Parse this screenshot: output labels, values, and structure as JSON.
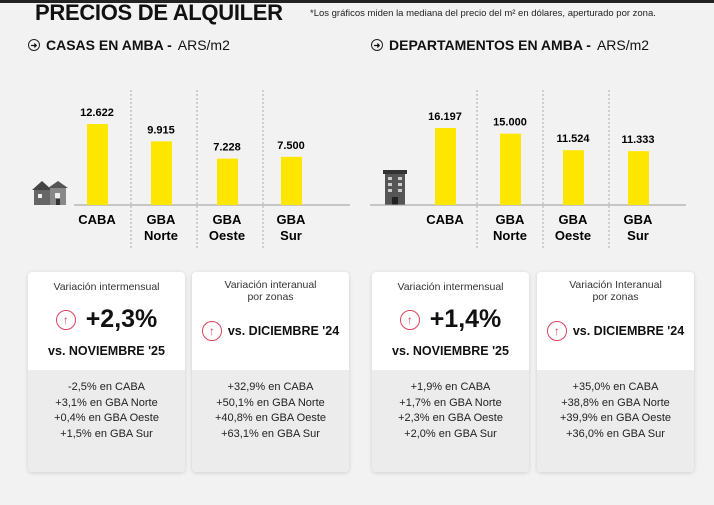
{
  "header": {
    "title": "PRECIOS DE ALQUILER",
    "note": "*Los gráficos miden la mediana del precio del m² en dólares, aperturado por zona."
  },
  "sections": [
    {
      "title": "CASAS EN AMBA -",
      "unit": "ARS/m2",
      "icon": "house-icon"
    },
    {
      "title": "DEPARTAMENTOS EN AMBA -",
      "unit": "ARS/m2",
      "icon": "building-icon"
    }
  ],
  "chart_data": [
    {
      "type": "bar",
      "title": "CASAS EN AMBA - ARS/m2",
      "categories": [
        "CABA",
        "GBA Norte",
        "GBA Oeste",
        "GBA Sur"
      ],
      "values": [
        12622,
        9915,
        7228,
        7500
      ],
      "labels": [
        "12.622",
        "9.915",
        "7.228",
        "7.500"
      ],
      "bar_color": "#ffe600"
    },
    {
      "type": "bar",
      "title": "DEPARTAMENTOS EN AMBA - ARS/m2",
      "categories": [
        "CABA",
        "GBA Norte",
        "GBA Oeste",
        "GBA Sur"
      ],
      "values": [
        16197,
        15000,
        11524,
        11333
      ],
      "labels": [
        "16.197",
        "15.000",
        "11.524",
        "11.333"
      ],
      "bar_color": "#ffe600"
    }
  ],
  "cards": [
    {
      "label": "Variación intermensual",
      "value": "+2,3%",
      "vs": "vs. NOVIEMBRE '25",
      "lines": [
        "-2,5% en CABA",
        "+3,1% en GBA Norte",
        "+0,4% en GBA Oeste",
        "+1,5% en GBA Sur"
      ]
    },
    {
      "label": "Variación interanual por zonas",
      "vs": "vs. DICIEMBRE '24",
      "lines": [
        "+32,9% en CABA",
        "+50,1% en GBA Norte",
        "+40,8% en GBA Oeste",
        "+63,1% en GBA Sur"
      ]
    },
    {
      "label": "Variación intermensual",
      "value": "+1,4%",
      "vs": "vs. NOVIEMBRE '25",
      "lines": [
        "+1,9% en CABA",
        "+1,7% en GBA Norte",
        "+2,3% en GBA Oeste",
        "+2,0% en GBA Sur"
      ]
    },
    {
      "label": "Variación Interanual por zonas",
      "vs": "vs. DICIEMBRE '24",
      "lines": [
        "+35,0% en CABA",
        "+38,8% en GBA Norte",
        "+39,9% en GBA Oeste",
        "+36,0% en GBA Sur"
      ]
    }
  ],
  "colors": {
    "accent": "#ffe600",
    "up": "#d9455f"
  }
}
